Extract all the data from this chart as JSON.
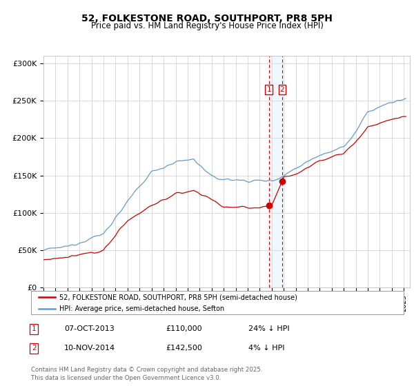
{
  "title": "52, FOLKESTONE ROAD, SOUTHPORT, PR8 5PH",
  "subtitle": "Price paid vs. HM Land Registry's House Price Index (HPI)",
  "ylabel_ticks": [
    "£0",
    "£50K",
    "£100K",
    "£150K",
    "£200K",
    "£250K",
    "£300K"
  ],
  "ytick_values": [
    0,
    50000,
    100000,
    150000,
    200000,
    250000,
    300000
  ],
  "ylim": [
    0,
    310000
  ],
  "xlim_start": 1995.0,
  "xlim_end": 2025.5,
  "sale1_date": 2013.77,
  "sale1_price": 110000,
  "sale1_label": "1",
  "sale1_text": "07-OCT-2013",
  "sale1_price_str": "£110,000",
  "sale1_pct": "24% ↓ HPI",
  "sale2_date": 2014.87,
  "sale2_price": 142500,
  "sale2_label": "2",
  "sale2_text": "10-NOV-2014",
  "sale2_price_str": "£142,500",
  "sale2_pct": "4% ↓ HPI",
  "legend_line1": "52, FOLKESTONE ROAD, SOUTHPORT, PR8 5PH (semi-detached house)",
  "legend_line2": "HPI: Average price, semi-detached house, Sefton",
  "footer": "Contains HM Land Registry data © Crown copyright and database right 2025.\nThis data is licensed under the Open Government Licence v3.0.",
  "red_color": "#cc0000",
  "blue_color": "#6699cc",
  "marker_box_color": "#cc0000",
  "shade_color": "#d0e8f8",
  "grid_color": "#cccccc",
  "background_color": "#ffffff"
}
